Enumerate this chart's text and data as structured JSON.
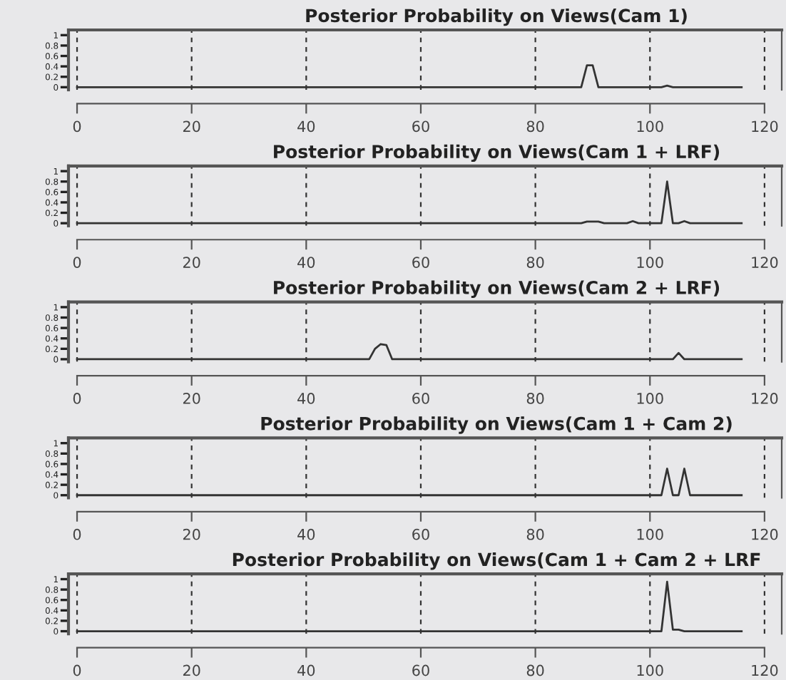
{
  "chart_data": [
    {
      "type": "line",
      "title": "Posterior Probability on Views(Cam 1)",
      "series": [
        {
          "color": "#333333",
          "x": [
            0,
            88,
            89,
            90,
            91,
            102,
            103,
            104,
            116
          ],
          "values": [
            0,
            0,
            0.42,
            0.42,
            0,
            0,
            0.03,
            0,
            0
          ]
        }
      ],
      "xlim": [
        -1.5,
        123
      ],
      "xticks": [
        0,
        20,
        40,
        60,
        80,
        100,
        120
      ],
      "ylim": [
        -0.05,
        1.1
      ],
      "yticks": [
        0,
        0.2,
        0.4,
        0.6,
        0.8,
        1
      ],
      "grid": "x",
      "legend": false
    },
    {
      "type": "line",
      "title": "Posterior Probability on Views(Cam 1 + LRF)",
      "series": [
        {
          "color": "#333333",
          "x": [
            0,
            88,
            89,
            91,
            92,
            96,
            97,
            98,
            102,
            103,
            104,
            105,
            106,
            107,
            116
          ],
          "values": [
            0,
            0,
            0.03,
            0.03,
            0,
            0,
            0.04,
            0,
            0,
            0.8,
            0,
            0,
            0.04,
            0,
            0
          ]
        }
      ],
      "xlim": [
        -1.5,
        123
      ],
      "xticks": [
        0,
        20,
        40,
        60,
        80,
        100,
        120
      ],
      "ylim": [
        -0.05,
        1.1
      ],
      "yticks": [
        0,
        0.2,
        0.4,
        0.6,
        0.8,
        1
      ],
      "grid": "x",
      "legend": false
    },
    {
      "type": "line",
      "title": "Posterior Probability on Views(Cam 2 + LRF)",
      "series": [
        {
          "color": "#333333",
          "x": [
            0,
            51,
            52,
            53,
            54,
            55,
            104,
            105,
            106,
            116
          ],
          "values": [
            0,
            0,
            0.2,
            0.29,
            0.27,
            0,
            0,
            0.12,
            0,
            0
          ]
        }
      ],
      "xlim": [
        -1.5,
        123
      ],
      "xticks": [
        0,
        20,
        40,
        60,
        80,
        100,
        120
      ],
      "ylim": [
        -0.05,
        1.1
      ],
      "yticks": [
        0,
        0.2,
        0.4,
        0.6,
        0.8,
        1
      ],
      "grid": "x",
      "legend": false
    },
    {
      "type": "line",
      "title": "Posterior Probability on Views(Cam 1 + Cam 2)",
      "series": [
        {
          "color": "#333333",
          "x": [
            0,
            102,
            103,
            104,
            105,
            106,
            107,
            116
          ],
          "values": [
            0,
            0,
            0.51,
            0,
            0,
            0.51,
            0,
            0
          ]
        }
      ],
      "xlim": [
        -1.5,
        123
      ],
      "xticks": [
        0,
        20,
        40,
        60,
        80,
        100,
        120
      ],
      "ylim": [
        -0.05,
        1.1
      ],
      "yticks": [
        0,
        0.2,
        0.4,
        0.6,
        0.8,
        1
      ],
      "grid": "x",
      "legend": false
    },
    {
      "type": "line",
      "title": "Posterior Probability on Views(Cam 1 + Cam 2 + LRF",
      "series": [
        {
          "color": "#333333",
          "x": [
            0,
            102,
            103,
            104,
            105,
            106,
            116
          ],
          "values": [
            0,
            0,
            0.95,
            0.03,
            0.03,
            0,
            0
          ]
        }
      ],
      "xlim": [
        -1.5,
        123
      ],
      "xticks": [
        0,
        20,
        40,
        60,
        80,
        100,
        120
      ],
      "ylim": [
        -0.05,
        1.1
      ],
      "yticks": [
        0,
        0.2,
        0.4,
        0.6,
        0.8,
        1
      ],
      "grid": "x",
      "legend": false
    }
  ]
}
